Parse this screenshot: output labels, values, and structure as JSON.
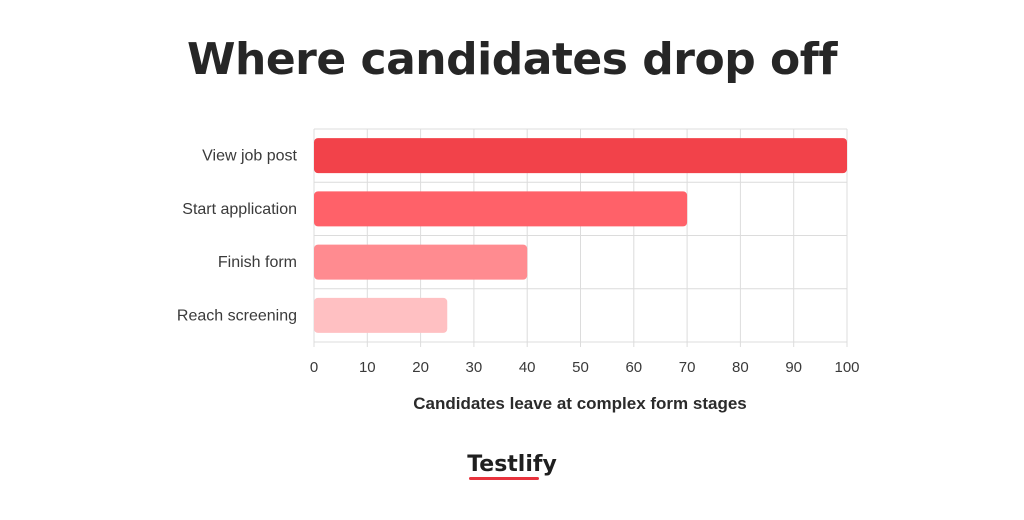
{
  "chart_data": {
    "type": "bar",
    "orientation": "horizontal",
    "title": "Where candidates drop off",
    "xlabel": "Candidates leave at complex form stages",
    "ylabel": "",
    "categories": [
      "View job post",
      "Start application",
      "Finish form",
      "Reach screening"
    ],
    "values": [
      100,
      70,
      40,
      25
    ],
    "colors": [
      "#f2424a",
      "#ff6169",
      "#ff8b90",
      "#ffc0c2"
    ],
    "xlim": [
      0,
      100
    ],
    "xticks": [
      0,
      10,
      20,
      30,
      40,
      50,
      60,
      70,
      80,
      90,
      100
    ],
    "grid": true,
    "legend": "none"
  },
  "brand": {
    "logo_text": "Testlify",
    "accent": "#e8333d"
  }
}
